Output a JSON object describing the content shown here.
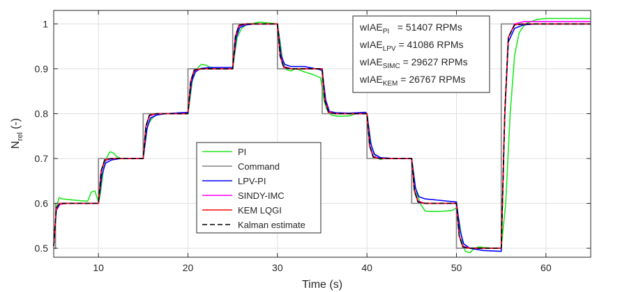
{
  "chart_data": {
    "type": "line",
    "title": "",
    "xlabel": "Time (s)",
    "ylabel_main": "N",
    "ylabel_sub": "rel",
    "ylabel_unit": " (-)",
    "xlim": [
      5,
      65
    ],
    "ylim": [
      0.48,
      1.03
    ],
    "xticks": [
      10,
      20,
      30,
      40,
      50,
      60
    ],
    "yticks": [
      0.5,
      0.6,
      0.7,
      0.8,
      0.9,
      1
    ],
    "ytick_labels": [
      "0.5",
      "0.6",
      "0.7",
      "0.8",
      "0.9",
      "1"
    ],
    "grid": true,
    "legend_location": "center",
    "annotations": [
      {
        "main": "wIAE",
        "sub": "PI",
        "rest": "   = 51407 RPMs"
      },
      {
        "main": "wIAE",
        "sub": "LPV",
        "rest": " = 41086 RPMs"
      },
      {
        "main": "wIAE",
        "sub": "SIMC",
        "rest": " = 29627 RPMs"
      },
      {
        "main": "wIAE",
        "sub": "KEM",
        "rest": " = 26767 RPMs"
      }
    ],
    "series": [
      {
        "name": "PI",
        "color": "#1ee61e",
        "dash": "",
        "x": [
          5,
          5.3,
          5.6,
          6,
          7,
          8,
          8.8,
          9.2,
          9.6,
          10,
          10.2,
          10.6,
          11,
          11.3,
          11.7,
          12,
          12.5,
          13,
          14,
          15,
          15.2,
          15.5,
          16,
          16.5,
          17,
          18,
          20,
          20.2,
          20.5,
          21,
          21.5,
          22,
          22.5,
          23,
          24,
          25,
          25.2,
          25.5,
          26,
          26.5,
          27,
          28,
          29,
          30,
          30.3,
          30.6,
          31,
          31.5,
          32,
          32.5,
          33,
          34,
          34.8,
          35,
          35.2,
          35.5,
          36,
          36.5,
          37,
          38,
          38.8,
          40,
          40.2,
          40.5,
          41,
          41.5,
          42,
          43,
          45,
          45.2,
          45.5,
          46,
          46.5,
          47,
          48,
          49.5,
          50,
          50.3,
          50.7,
          51,
          51.5,
          52,
          52.5,
          53,
          54,
          55,
          55.5,
          56,
          56.5,
          57,
          57.5,
          58,
          58.5,
          59,
          60,
          62,
          65
        ],
        "values": [
          0.51,
          0.59,
          0.613,
          0.61,
          0.608,
          0.606,
          0.605,
          0.625,
          0.628,
          0.603,
          0.62,
          0.68,
          0.705,
          0.715,
          0.712,
          0.705,
          0.7,
          0.7,
          0.7,
          0.7,
          0.73,
          0.775,
          0.79,
          0.797,
          0.8,
          0.8,
          0.8,
          0.83,
          0.875,
          0.9,
          0.91,
          0.908,
          0.903,
          0.9,
          0.9,
          0.9,
          0.93,
          0.97,
          0.99,
          0.998,
          1.0,
          1.004,
          1.002,
          1.0,
          0.96,
          0.915,
          0.898,
          0.895,
          0.9,
          0.897,
          0.893,
          0.887,
          0.88,
          0.86,
          0.83,
          0.81,
          0.797,
          0.795,
          0.794,
          0.795,
          0.8,
          0.8,
          0.77,
          0.728,
          0.703,
          0.698,
          0.7,
          0.7,
          0.7,
          0.67,
          0.625,
          0.598,
          0.583,
          0.582,
          0.582,
          0.584,
          0.59,
          0.56,
          0.51,
          0.493,
          0.49,
          0.5,
          0.503,
          0.502,
          0.5,
          0.5,
          0.6,
          0.8,
          0.93,
          0.98,
          0.995,
          1.003,
          1.006,
          1.01,
          1.012,
          1.012,
          1.012
        ]
      },
      {
        "name": "Command",
        "color": "#808080",
        "dash": "",
        "x": [
          5,
          5.2,
          5.2,
          10,
          10,
          15,
          15,
          20,
          20,
          25,
          25,
          30,
          30,
          35,
          35,
          40,
          40,
          45,
          45,
          50,
          50,
          55,
          55,
          65
        ],
        "values": [
          0.5,
          0.5,
          0.6,
          0.6,
          0.7,
          0.7,
          0.8,
          0.8,
          0.9,
          0.9,
          1.0,
          1.0,
          0.9,
          0.9,
          0.8,
          0.8,
          0.7,
          0.7,
          0.6,
          0.6,
          0.5,
          0.5,
          1.0,
          1.0
        ]
      },
      {
        "name": "LPV-PI",
        "color": "#0000ff",
        "dash": "",
        "x": [
          5,
          5.3,
          5.7,
          6.5,
          8,
          10,
          10.4,
          10.8,
          11.5,
          12.5,
          15,
          15.4,
          15.8,
          16.5,
          17.5,
          20,
          20.4,
          20.8,
          21.5,
          22.5,
          25,
          25.4,
          25.8,
          26.5,
          27.5,
          30,
          30.4,
          30.8,
          31.5,
          33,
          34.8,
          35,
          35.4,
          35.8,
          36.5,
          38,
          39.8,
          40,
          40.4,
          40.8,
          41.5,
          43,
          44.8,
          45,
          45.4,
          45.8,
          46.5,
          48,
          50,
          50.4,
          50.8,
          51.5,
          53,
          55,
          55.4,
          55.8,
          56.5,
          57.5,
          59,
          65
        ],
        "values": [
          0.505,
          0.585,
          0.598,
          0.6,
          0.6,
          0.6,
          0.665,
          0.69,
          0.697,
          0.7,
          0.7,
          0.765,
          0.79,
          0.797,
          0.8,
          0.803,
          0.87,
          0.893,
          0.901,
          0.903,
          0.903,
          0.97,
          0.992,
          0.998,
          1.0,
          1.0,
          0.93,
          0.91,
          0.905,
          0.905,
          0.898,
          0.895,
          0.83,
          0.805,
          0.802,
          0.801,
          0.803,
          0.8,
          0.735,
          0.71,
          0.702,
          0.7,
          0.7,
          0.7,
          0.635,
          0.615,
          0.61,
          0.607,
          0.603,
          0.54,
          0.51,
          0.5,
          0.495,
          0.493,
          0.8,
          0.96,
          0.99,
          0.998,
          1.0,
          1.0
        ]
      },
      {
        "name": "SINDY-IMC",
        "color": "#ff00ff",
        "dash": "",
        "x": [
          5,
          5.3,
          5.7,
          6.5,
          10,
          10.3,
          10.7,
          11.5,
          15,
          15.3,
          15.7,
          16.5,
          20,
          20.3,
          20.7,
          21.5,
          25,
          25.3,
          25.7,
          26.5,
          30,
          30.3,
          30.7,
          31.5,
          35,
          35.3,
          35.7,
          36.5,
          40,
          40.3,
          40.7,
          41.5,
          45,
          45.3,
          45.7,
          46.5,
          50,
          50.3,
          50.7,
          51.5,
          55,
          55.4,
          55.8,
          56.5,
          57.5,
          65
        ],
        "values": [
          0.505,
          0.588,
          0.598,
          0.6,
          0.6,
          0.67,
          0.695,
          0.7,
          0.7,
          0.77,
          0.795,
          0.8,
          0.8,
          0.87,
          0.895,
          0.9,
          0.9,
          0.97,
          0.995,
          1.0,
          1.0,
          0.93,
          0.905,
          0.9,
          0.9,
          0.83,
          0.805,
          0.8,
          0.8,
          0.73,
          0.705,
          0.7,
          0.7,
          0.63,
          0.605,
          0.6,
          0.6,
          0.53,
          0.505,
          0.5,
          0.5,
          0.8,
          0.97,
          1.0,
          1.005,
          1.005
        ]
      },
      {
        "name": "KEM LQGI",
        "color": "#ff0000",
        "dash": "",
        "x": [
          5,
          5.3,
          5.7,
          6.5,
          10,
          10.3,
          10.7,
          11.5,
          15,
          15.3,
          15.7,
          16.5,
          20,
          20.3,
          20.7,
          21.5,
          25,
          25.3,
          25.7,
          26.5,
          30,
          30.3,
          30.7,
          31.5,
          35,
          35.3,
          35.7,
          36.5,
          40,
          40.3,
          40.7,
          41.5,
          45,
          45.3,
          45.7,
          46.5,
          50,
          50.3,
          50.7,
          51.5,
          55,
          55.4,
          55.8,
          56.5,
          57.5,
          65
        ],
        "values": [
          0.505,
          0.59,
          0.6,
          0.6,
          0.6,
          0.672,
          0.697,
          0.7,
          0.7,
          0.772,
          0.797,
          0.8,
          0.8,
          0.872,
          0.897,
          0.9,
          0.9,
          0.972,
          0.997,
          1.0,
          1.0,
          0.928,
          0.903,
          0.9,
          0.9,
          0.828,
          0.803,
          0.8,
          0.8,
          0.728,
          0.703,
          0.7,
          0.7,
          0.628,
          0.603,
          0.6,
          0.6,
          0.528,
          0.503,
          0.5,
          0.5,
          0.8,
          0.97,
          0.998,
          1.0,
          1.0
        ]
      },
      {
        "name": "Kalman estimate",
        "color": "#000000",
        "dash": "7,4",
        "x": [
          5,
          5.3,
          5.7,
          6.5,
          10,
          10.3,
          10.7,
          11.5,
          15,
          15.3,
          15.7,
          16.5,
          20,
          20.3,
          20.7,
          21.5,
          25,
          25.3,
          25.7,
          26.5,
          30,
          30.3,
          30.7,
          31.5,
          35,
          35.3,
          35.7,
          36.5,
          40,
          40.3,
          40.7,
          41.5,
          45,
          45.3,
          45.7,
          46.5,
          50,
          50.3,
          50.7,
          51.5,
          55,
          55.4,
          55.8,
          56.5,
          57.5,
          65
        ],
        "values": [
          0.505,
          0.59,
          0.6,
          0.6,
          0.6,
          0.672,
          0.697,
          0.7,
          0.7,
          0.772,
          0.797,
          0.8,
          0.8,
          0.872,
          0.897,
          0.9,
          0.9,
          0.972,
          0.997,
          1.0,
          1.0,
          0.928,
          0.903,
          0.9,
          0.9,
          0.828,
          0.803,
          0.8,
          0.8,
          0.728,
          0.703,
          0.7,
          0.7,
          0.628,
          0.603,
          0.6,
          0.6,
          0.528,
          0.503,
          0.5,
          0.5,
          0.8,
          0.97,
          0.998,
          1.0,
          1.0
        ]
      }
    ]
  }
}
